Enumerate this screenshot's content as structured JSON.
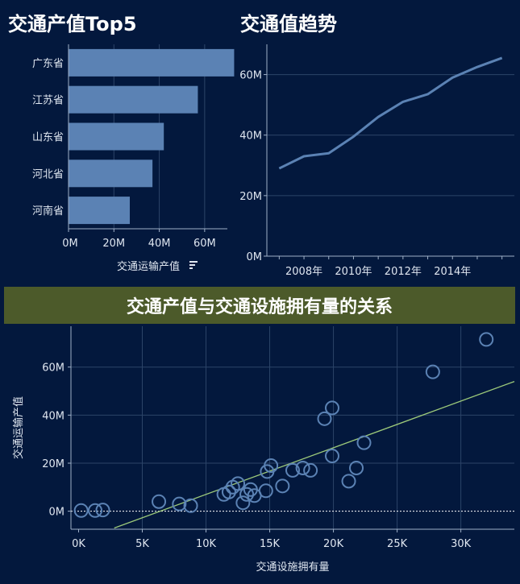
{
  "titles": {
    "bar": "交通产值Top5",
    "line": "交通值趋势",
    "scatter": "交通产值与交通设施拥有量的关系"
  },
  "icons": {
    "sort": "sort-descending-icon"
  },
  "colors": {
    "background": "#03183d",
    "mark": "#5b82b4",
    "banner": "#4c5a2a",
    "trend": "#9cc97a"
  },
  "chart_data": [
    {
      "type": "bar",
      "orientation": "horizontal",
      "title": "交通产值Top5",
      "categories": [
        "广东省",
        "江苏省",
        "山东省",
        "河北省",
        "河南省"
      ],
      "values": [
        73,
        57,
        42,
        37,
        27
      ],
      "xlabel": "交通运输产值",
      "xticks": [
        "0M",
        "20M",
        "40M",
        "60M"
      ],
      "xlim": [
        0,
        70
      ],
      "unit": "M"
    },
    {
      "type": "line",
      "title": "交通值趋势",
      "x": [
        2007,
        2008,
        2009,
        2010,
        2011,
        2012,
        2013,
        2014,
        2015,
        2016
      ],
      "values": [
        29,
        33,
        34,
        39.5,
        46,
        51,
        53.5,
        59,
        62.5,
        65.5
      ],
      "xticks": [
        "2008年",
        "2010年",
        "2012年",
        "2014年"
      ],
      "yticks": [
        "0M",
        "20M",
        "40M",
        "60M"
      ],
      "ylim": [
        0,
        70
      ],
      "unit": "M"
    },
    {
      "type": "scatter",
      "title": "交通产值与交通设施拥有量的关系",
      "xlabel": "交通设施拥有量",
      "ylabel": "交通运输产值",
      "xticks": [
        "0K",
        "5K",
        "10K",
        "15K",
        "20K",
        "25K",
        "30K"
      ],
      "yticks": [
        "0M",
        "20M",
        "40M",
        "60M"
      ],
      "xlim": [
        -600,
        34200
      ],
      "ylim": [
        -7.5,
        77
      ],
      "points": [
        {
          "x": 200,
          "y": 0.3
        },
        {
          "x": 1300,
          "y": 0.3
        },
        {
          "x": 1900,
          "y": 0.5
        },
        {
          "x": 6300,
          "y": 4
        },
        {
          "x": 7900,
          "y": 3
        },
        {
          "x": 8800,
          "y": 2.3
        },
        {
          "x": 11400,
          "y": 7
        },
        {
          "x": 11800,
          "y": 8
        },
        {
          "x": 12100,
          "y": 10
        },
        {
          "x": 12500,
          "y": 11.5
        },
        {
          "x": 12900,
          "y": 3.5
        },
        {
          "x": 13200,
          "y": 7
        },
        {
          "x": 13500,
          "y": 9
        },
        {
          "x": 13800,
          "y": 6.5
        },
        {
          "x": 14700,
          "y": 8.5
        },
        {
          "x": 14800,
          "y": 16.5
        },
        {
          "x": 15100,
          "y": 19
        },
        {
          "x": 16000,
          "y": 10.5
        },
        {
          "x": 16800,
          "y": 17
        },
        {
          "x": 17600,
          "y": 18
        },
        {
          "x": 18200,
          "y": 17
        },
        {
          "x": 19300,
          "y": 38.5
        },
        {
          "x": 19900,
          "y": 43
        },
        {
          "x": 19900,
          "y": 23
        },
        {
          "x": 21200,
          "y": 12.5
        },
        {
          "x": 21800,
          "y": 18
        },
        {
          "x": 22400,
          "y": 28.5
        },
        {
          "x": 27800,
          "y": 58
        },
        {
          "x": 32000,
          "y": 71.5
        }
      ],
      "trend_line": {
        "x": [
          2800,
          34200
        ],
        "y": [
          -7,
          54
        ]
      }
    }
  ]
}
